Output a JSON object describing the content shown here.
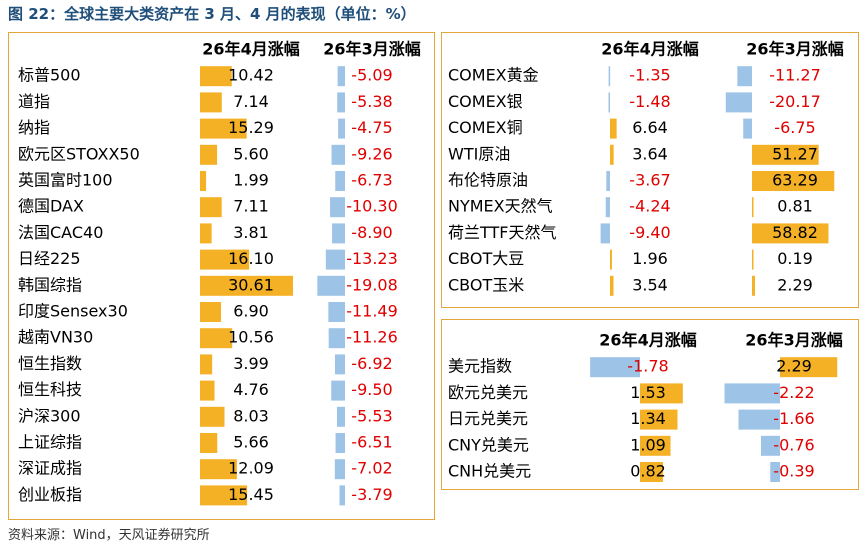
{
  "title": "图 22：全球主要大类资产在 3 月、4 月的表现（单位：%）",
  "source": "资料来源：Wind，天风证券研究所",
  "colors": {
    "positive": "#f5b126",
    "negative": "#9dc3e6",
    "negative_text": "#e00000",
    "positive_text": "#000000",
    "title": "#1f4e79",
    "border": "#e3a73c"
  },
  "chart_data": [
    {
      "type": "table",
      "columns": [
        "26年4月涨幅",
        "26年3月涨幅"
      ],
      "rows": [
        {
          "name": "标普500",
          "apr": 10.42,
          "mar": -5.09
        },
        {
          "name": "道指",
          "apr": 7.14,
          "mar": -5.38
        },
        {
          "name": "纳指",
          "apr": 15.29,
          "mar": -4.75
        },
        {
          "name": "欧元区STOXX50",
          "apr": 5.6,
          "mar": -9.26
        },
        {
          "name": "英国富时100",
          "apr": 1.99,
          "mar": -6.73
        },
        {
          "name": "德国DAX",
          "apr": 7.11,
          "mar": -10.3
        },
        {
          "name": "法国CAC40",
          "apr": 3.81,
          "mar": -8.9
        },
        {
          "name": "日经225",
          "apr": 16.1,
          "mar": -13.23
        },
        {
          "name": "韩国综指",
          "apr": 30.61,
          "mar": -19.08
        },
        {
          "name": "印度Sensex30",
          "apr": 6.9,
          "mar": -11.49
        },
        {
          "name": "越南VN30",
          "apr": 10.56,
          "mar": -11.26
        },
        {
          "name": "恒生指数",
          "apr": 3.99,
          "mar": -6.92
        },
        {
          "name": "恒生科技",
          "apr": 4.76,
          "mar": -9.5
        },
        {
          "name": "沪深300",
          "apr": 8.03,
          "mar": -5.53
        },
        {
          "name": "上证综指",
          "apr": 5.66,
          "mar": -6.51
        },
        {
          "name": "深证成指",
          "apr": 12.09,
          "mar": -7.02
        },
        {
          "name": "创业板指",
          "apr": 15.45,
          "mar": -3.79
        }
      ]
    },
    {
      "type": "table",
      "columns": [
        "26年4月涨幅",
        "26年3月涨幅"
      ],
      "rows": [
        {
          "name": "COMEX黄金",
          "apr": -1.35,
          "mar": -11.27
        },
        {
          "name": "COMEX银",
          "apr": -1.48,
          "mar": -20.17
        },
        {
          "name": "COMEX铜",
          "apr": 6.64,
          "mar": -6.75
        },
        {
          "name": "WTI原油",
          "apr": 3.64,
          "mar": 51.27
        },
        {
          "name": "布伦特原油",
          "apr": -3.67,
          "mar": 63.29
        },
        {
          "name": "NYMEX天然气",
          "apr": -4.24,
          "mar": 0.81
        },
        {
          "name": "荷兰TTF天然气",
          "apr": -9.4,
          "mar": 58.82
        },
        {
          "name": "CBOT大豆",
          "apr": 1.96,
          "mar": 0.19
        },
        {
          "name": "CBOT玉米",
          "apr": 3.54,
          "mar": 2.29
        }
      ]
    },
    {
      "type": "table",
      "columns": [
        "26年4月涨幅",
        "26年3月涨幅"
      ],
      "rows": [
        {
          "name": "美元指数",
          "apr": -1.78,
          "mar": 2.29
        },
        {
          "name": "欧元兑美元",
          "apr": 1.53,
          "mar": -2.22
        },
        {
          "name": "日元兑美元",
          "apr": 1.34,
          "mar": -1.66
        },
        {
          "name": "CNY兑美元",
          "apr": 1.09,
          "mar": -0.76
        },
        {
          "name": "CNH兑美元",
          "apr": 0.82,
          "mar": -0.39
        }
      ]
    }
  ]
}
